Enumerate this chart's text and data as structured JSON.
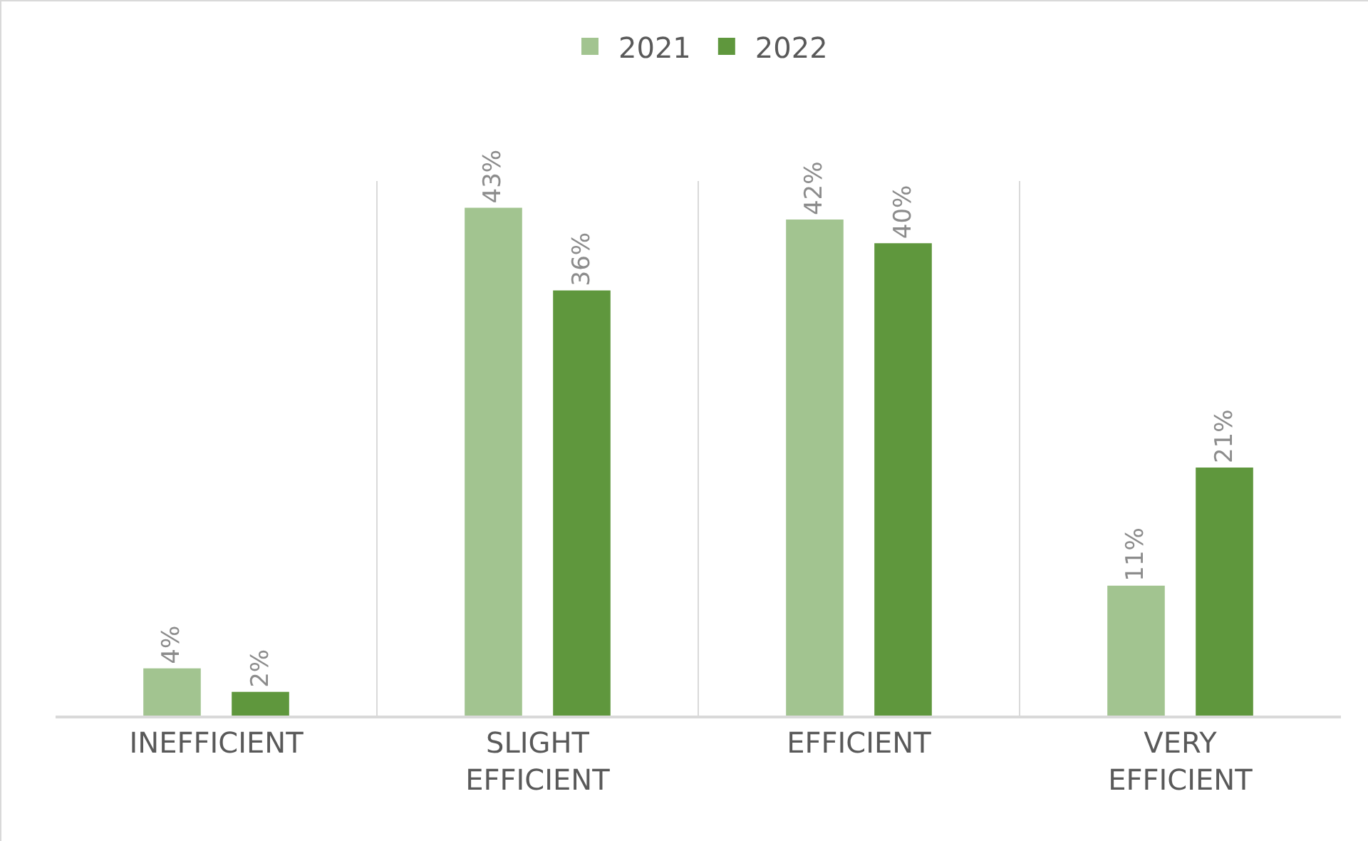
{
  "chart_data": {
    "type": "bar",
    "categories": [
      "INEFFICIENT",
      "SLIGHT EFFICIENT",
      "EFFICIENT",
      "VERY EFFICIENT"
    ],
    "series": [
      {
        "name": "2021",
        "color": "#a2c490",
        "values": [
          4,
          43,
          42,
          11
        ],
        "value_labels": [
          "4%",
          "43%",
          "42%",
          "11%"
        ]
      },
      {
        "name": "2022",
        "color": "#5f973d",
        "values": [
          2,
          36,
          40,
          21
        ],
        "value_labels": [
          "2%",
          "36%",
          "40%",
          "21%"
        ]
      }
    ],
    "grid": "x",
    "legend": "top"
  }
}
